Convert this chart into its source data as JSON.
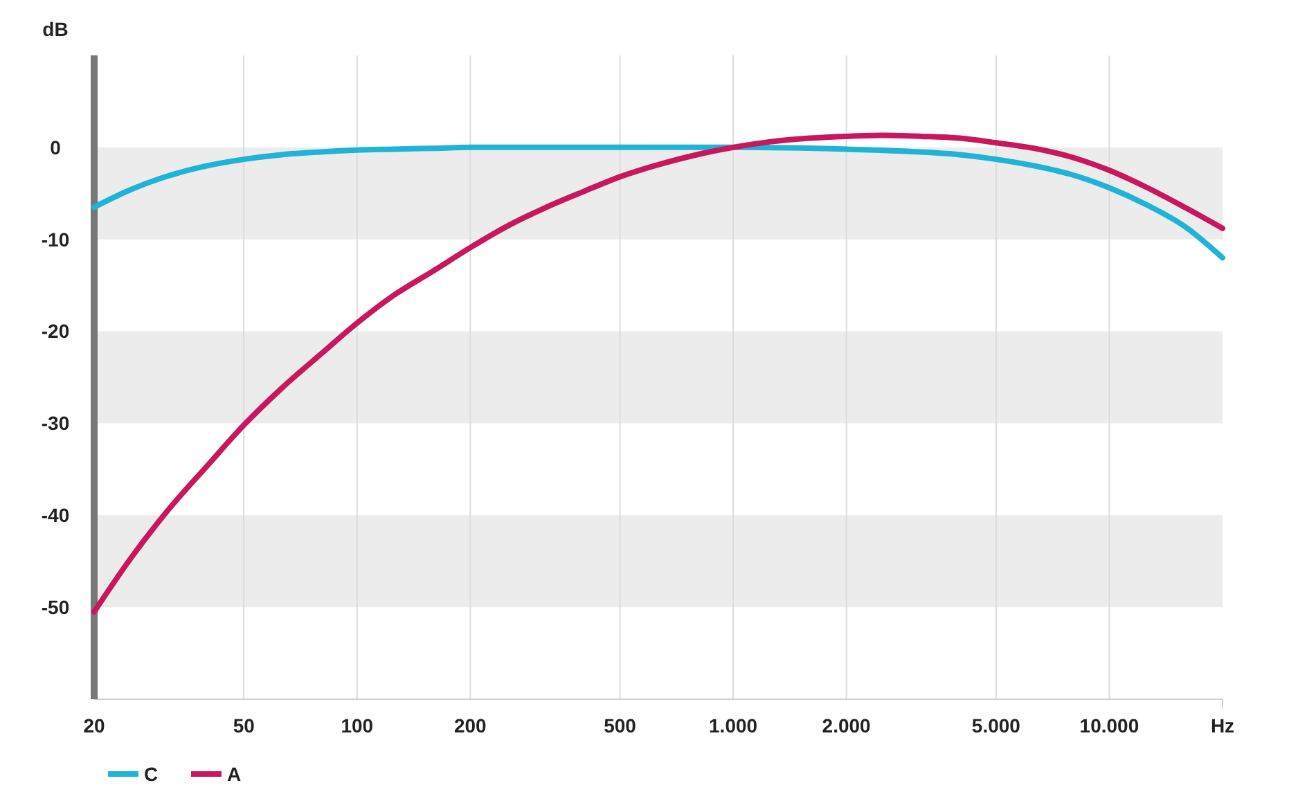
{
  "chart_data": {
    "type": "line",
    "ylabel": "dB",
    "xlabel": "Hz",
    "log": "x",
    "xlim": [
      20,
      20000
    ],
    "xticks": [
      20,
      50,
      100,
      200,
      500,
      {
        "value": 1000,
        "label": "1.000"
      },
      {
        "value": 2000,
        "label": "2.000"
      },
      {
        "value": 5000,
        "label": "5.000"
      },
      {
        "value": 10000,
        "label": "10.000"
      }
    ],
    "ylim": [
      -60,
      10
    ],
    "yticks": [
      0,
      -10,
      -20,
      -30,
      -40,
      -50
    ],
    "grid": true,
    "legend": "bottom left",
    "line_style": "solid",
    "series": [
      {
        "name": "C",
        "color": "#1fb3d6",
        "x": [
          20,
          25,
          31.5,
          40,
          50,
          63,
          80,
          100,
          125,
          160,
          200,
          500,
          1000,
          2000,
          3150,
          4000,
          5000,
          6300,
          8000,
          10000,
          12500,
          16000,
          20000
        ],
        "values": [
          -6.5,
          -4.6,
          -3.1,
          -2.0,
          -1.3,
          -0.8,
          -0.5,
          -0.3,
          -0.2,
          -0.1,
          0,
          0,
          0,
          -0.2,
          -0.5,
          -0.8,
          -1.3,
          -2.0,
          -3.0,
          -4.4,
          -6.2,
          -8.7,
          -12
        ]
      },
      {
        "name": "A",
        "color": "#c8175d",
        "x": [
          20,
          25,
          31.5,
          40,
          50,
          63,
          80,
          100,
          125,
          160,
          200,
          250,
          315,
          400,
          500,
          630,
          800,
          1000,
          1250,
          1600,
          2000,
          2500,
          3150,
          4000,
          5000,
          6300,
          8000,
          10000,
          12500,
          16000,
          20000
        ],
        "values": [
          -50.5,
          -44.7,
          -39.4,
          -34.6,
          -30.2,
          -26.2,
          -22.5,
          -19.1,
          -16.1,
          -13.4,
          -10.9,
          -8.6,
          -6.6,
          -4.8,
          -3.2,
          -1.9,
          -0.8,
          0,
          0.6,
          1.0,
          1.2,
          1.3,
          1.2,
          1.0,
          0.5,
          -0.1,
          -1.1,
          -2.5,
          -4.3,
          -6.6,
          -8.8
        ]
      }
    ]
  }
}
